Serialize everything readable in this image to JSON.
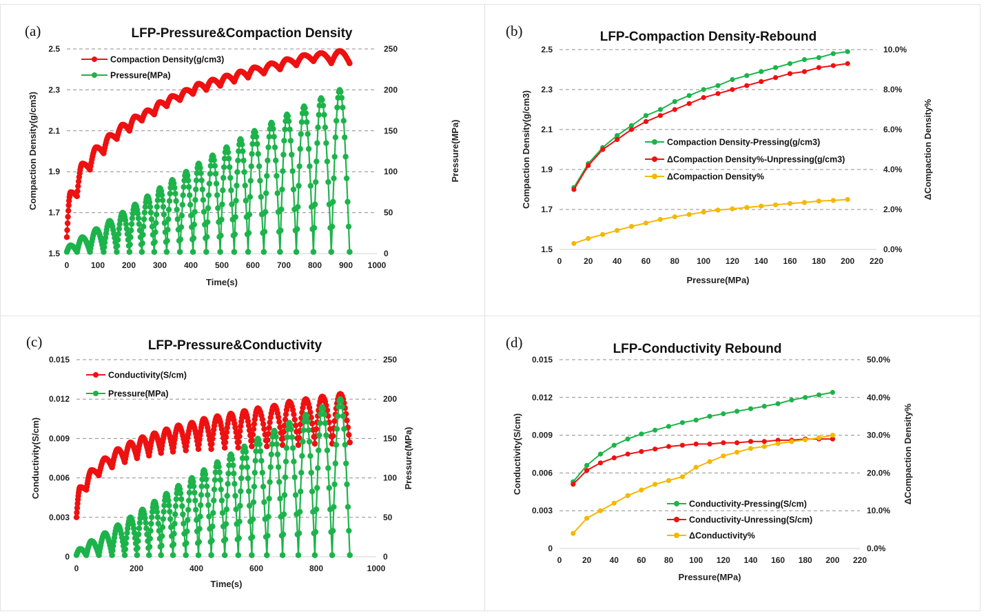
{
  "chart_data": [
    {
      "id": "a",
      "panel_label": "(a)",
      "type": "line",
      "title": "LFP-Pressure&Compaction Density",
      "xlabel": "Time(s)",
      "ylabel_left": "Compaction Density(g/cm3)",
      "ylabel_right": "Pressure(MPa)",
      "xlim": [
        0,
        1000
      ],
      "ylim_left": [
        1.5,
        2.5
      ],
      "ylim_right": [
        0,
        250
      ],
      "x_ticks": [
        "0",
        "100",
        "200",
        "300",
        "400",
        "500",
        "600",
        "700",
        "800",
        "900",
        "1000"
      ],
      "y_left_ticks": [
        "1.5",
        "1.7",
        "1.9",
        "2.1",
        "2.3",
        "2.5"
      ],
      "y_right_ticks": [
        "0",
        "50",
        "100",
        "150",
        "200",
        "250"
      ],
      "legend_position": "top-left",
      "series": [
        {
          "name": "Compaction Density(g/cm3)",
          "axis": "left",
          "color": "#ee1111",
          "cycles": {
            "peak_times": [
              12,
              50,
              95,
              138,
              180,
              220,
              260,
              300,
              340,
              385,
              425,
              470,
              515,
              560,
              605,
              660,
              710,
              765,
              820,
              880
            ],
            "peaks": [
              1.8,
              1.94,
              2.02,
              2.08,
              2.13,
              2.17,
              2.2,
              2.24,
              2.27,
              2.3,
              2.33,
              2.35,
              2.37,
              2.39,
              2.41,
              2.43,
              2.45,
              2.47,
              2.48,
              2.49
            ],
            "troughs": [
              1.58,
              1.78,
              1.91,
              1.99,
              2.06,
              2.1,
              2.15,
              2.18,
              2.22,
              2.25,
              2.28,
              2.3,
              2.32,
              2.34,
              2.36,
              2.38,
              2.4,
              2.42,
              2.44,
              2.43
            ],
            "end": [
              912,
              2.43
            ]
          }
        },
        {
          "name": "Pressure(MPa)",
          "axis": "right",
          "color": "#1db34b",
          "cycles": {
            "peak_times": [
              12,
              50,
              95,
              138,
              180,
              220,
              260,
              300,
              340,
              385,
              425,
              470,
              515,
              560,
              605,
              660,
              710,
              765,
              820,
              880
            ],
            "peaks": [
              10,
              20,
              30,
              40,
              50,
              60,
              70,
              80,
              90,
              100,
              110,
              120,
              130,
              140,
              150,
              160,
              170,
              180,
              190,
              200
            ],
            "trough": 2,
            "end": [
              912,
              2
            ]
          }
        }
      ]
    },
    {
      "id": "b",
      "panel_label": "(b)",
      "type": "line",
      "title": "LFP-Compaction Density-Rebound",
      "xlabel": "Pressure(MPa)",
      "ylabel_left": "Compaction Density(g/cm3)",
      "ylabel_right": "ΔCompaction Density%",
      "xlim": [
        0,
        220
      ],
      "ylim_left": [
        1.5,
        2.5
      ],
      "ylim_right": [
        0,
        10
      ],
      "x_ticks": [
        "0",
        "20",
        "40",
        "60",
        "80",
        "100",
        "120",
        "140",
        "160",
        "180",
        "200",
        "220"
      ],
      "y_left_ticks": [
        "1.5",
        "1.7",
        "1.9",
        "2.1",
        "2.3",
        "2.5"
      ],
      "y_right_ticks": [
        "0.0%",
        "2.0%",
        "4.0%",
        "6.0%",
        "8.0%",
        "10.0%"
      ],
      "legend_position": "center",
      "x": [
        10,
        20,
        30,
        40,
        50,
        60,
        70,
        80,
        90,
        100,
        110,
        120,
        130,
        140,
        150,
        160,
        170,
        180,
        190,
        200
      ],
      "series": [
        {
          "name": "Compaction Density-Pressing(g/cm3)",
          "axis": "left",
          "color": "#1db34b",
          "values": [
            1.81,
            1.93,
            2.01,
            2.07,
            2.12,
            2.17,
            2.2,
            2.24,
            2.27,
            2.3,
            2.32,
            2.35,
            2.37,
            2.39,
            2.41,
            2.43,
            2.45,
            2.46,
            2.48,
            2.49
          ]
        },
        {
          "name": "ΔCompaction Density%-Unpressing(g/cm3)",
          "axis": "left",
          "color": "#ee1111",
          "values": [
            1.8,
            1.92,
            2.0,
            2.05,
            2.1,
            2.14,
            2.17,
            2.2,
            2.23,
            2.26,
            2.28,
            2.3,
            2.32,
            2.34,
            2.36,
            2.38,
            2.39,
            2.41,
            2.42,
            2.43
          ]
        },
        {
          "name": "ΔCompaction Density%",
          "axis": "right",
          "color": "#f5b700",
          "values": [
            0.3,
            0.55,
            0.75,
            0.95,
            1.15,
            1.32,
            1.5,
            1.63,
            1.75,
            1.87,
            1.97,
            2.03,
            2.1,
            2.17,
            2.23,
            2.3,
            2.35,
            2.42,
            2.45,
            2.5
          ]
        }
      ]
    },
    {
      "id": "c",
      "panel_label": "(c)",
      "type": "line",
      "title": "LFP-Pressure&Conductivity",
      "xlabel": "Time(s)",
      "ylabel_left": "Conductivity(S/cm)",
      "ylabel_right": "Pressure(MPa)",
      "xlim": [
        0,
        1000
      ],
      "ylim_left": [
        0,
        0.015
      ],
      "ylim_right": [
        0,
        250
      ],
      "x_ticks": [
        "0",
        "200",
        "400",
        "600",
        "800",
        "1000"
      ],
      "y_left_ticks": [
        "0",
        "0.003",
        "0.006",
        "0.009",
        "0.012",
        "0.015"
      ],
      "y_right_ticks": [
        "0",
        "50",
        "100",
        "150",
        "200",
        "250"
      ],
      "legend_position": "top-left",
      "series": [
        {
          "name": "Conductivity(S/cm)",
          "axis": "left",
          "color": "#ee1111",
          "cycles": {
            "peak_times": [
              12,
              50,
              95,
              138,
              180,
              220,
              260,
              300,
              340,
              385,
              425,
              470,
              515,
              560,
              605,
              660,
              710,
              765,
              820,
              880
            ],
            "peaks": [
              0.0053,
              0.0066,
              0.0075,
              0.0082,
              0.0087,
              0.0091,
              0.0094,
              0.0097,
              0.01,
              0.0102,
              0.0105,
              0.0107,
              0.0109,
              0.0111,
              0.0113,
              0.0115,
              0.0118,
              0.012,
              0.0122,
              0.0124
            ],
            "troughs": [
              0.003,
              0.0051,
              0.0062,
              0.0068,
              0.0072,
              0.0075,
              0.0077,
              0.0079,
              0.008,
              0.0081,
              0.0082,
              0.0082,
              0.0083,
              0.0083,
              0.0084,
              0.0084,
              0.0085,
              0.0085,
              0.0086,
              0.0086
            ],
            "end": [
              912,
              0.0087
            ]
          }
        },
        {
          "name": "Pressure(MPa)",
          "axis": "right",
          "color": "#1db34b",
          "cycles": {
            "peak_times": [
              12,
              50,
              95,
              138,
              180,
              220,
              260,
              300,
              340,
              385,
              425,
              470,
              515,
              560,
              605,
              660,
              710,
              765,
              820,
              880
            ],
            "peaks": [
              10,
              20,
              30,
              40,
              50,
              60,
              70,
              80,
              90,
              100,
              110,
              120,
              130,
              140,
              150,
              160,
              170,
              180,
              190,
              200
            ],
            "trough": 2,
            "end": [
              912,
              2
            ]
          }
        }
      ]
    },
    {
      "id": "d",
      "panel_label": "(d)",
      "type": "line",
      "title": "LFP-Conductivity Rebound",
      "xlabel": "Pressure(MPa)",
      "ylabel_left": "Conductivity(S/cm)",
      "ylabel_right": "ΔCompaction Density%",
      "xlim": [
        0,
        220
      ],
      "ylim_left": [
        0,
        0.015
      ],
      "ylim_right": [
        0,
        50
      ],
      "x_ticks": [
        "0",
        "20",
        "40",
        "60",
        "80",
        "100",
        "120",
        "140",
        "160",
        "180",
        "200",
        "220"
      ],
      "y_left_ticks": [
        "0",
        "0.003",
        "0.006",
        "0.009",
        "0.012",
        "0.015"
      ],
      "y_right_ticks": [
        "0.0%",
        "10.0%",
        "20.0%",
        "30.0%",
        "40.0%",
        "50.0%"
      ],
      "legend_position": "bottom-center",
      "x": [
        10,
        20,
        30,
        40,
        50,
        60,
        70,
        80,
        90,
        100,
        110,
        120,
        130,
        140,
        150,
        160,
        170,
        180,
        190,
        200
      ],
      "series": [
        {
          "name": "Conductivity-Pressing(S/cm)",
          "axis": "left",
          "color": "#1db34b",
          "values": [
            0.0053,
            0.0066,
            0.0075,
            0.0082,
            0.0087,
            0.0091,
            0.0094,
            0.0097,
            0.01,
            0.0102,
            0.0105,
            0.0107,
            0.0109,
            0.0111,
            0.0113,
            0.0115,
            0.0118,
            0.012,
            0.0122,
            0.0124
          ]
        },
        {
          "name": "Conductivity-Unressing(S/cm)",
          "axis": "left",
          "color": "#ee1111",
          "values": [
            0.0051,
            0.0062,
            0.0068,
            0.0072,
            0.0075,
            0.0077,
            0.0079,
            0.0081,
            0.0082,
            0.0083,
            0.0083,
            0.0084,
            0.0084,
            0.0085,
            0.0085,
            0.0086,
            0.0086,
            0.0087,
            0.0087,
            0.0087
          ]
        },
        {
          "name": "ΔConductivity%",
          "axis": "right",
          "color": "#f5b700",
          "values": [
            4,
            8,
            10,
            12,
            14,
            15.5,
            17,
            18,
            19,
            21.5,
            23,
            24.5,
            25.5,
            26.5,
            27,
            27.8,
            28.3,
            28.8,
            29.3,
            30
          ]
        }
      ]
    }
  ]
}
